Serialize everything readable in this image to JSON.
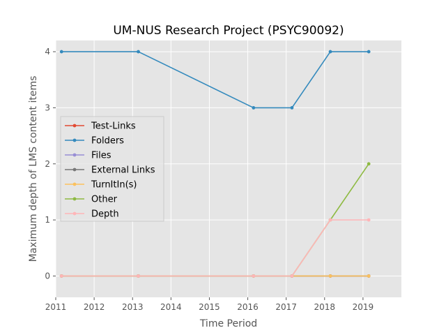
{
  "chart_data": {
    "type": "line",
    "title": "UM-NUS Research Project (PSYC90092)",
    "xlabel": "Time Period",
    "ylabel": "Maximum depth of LMS content items",
    "xlim": [
      2011.0,
      2020.0
    ],
    "ylim": [
      -0.38,
      4.2
    ],
    "x_ticks": [
      2011,
      2012,
      2013,
      2014,
      2015,
      2016,
      2017,
      2018,
      2019
    ],
    "y_ticks": [
      0,
      1,
      2,
      3,
      4
    ],
    "x": [
      2011.15,
      2013.15,
      2016.15,
      2017.15,
      2018.15,
      2019.15
    ],
    "grid": true,
    "legend_position": "center-left",
    "background": "#e5e5e5",
    "series": [
      {
        "name": "Test-Links",
        "color": "#e24a33",
        "values": [
          0,
          0,
          0,
          0,
          0,
          0
        ]
      },
      {
        "name": "Folders",
        "color": "#348abd",
        "values": [
          4,
          4,
          3,
          3,
          4,
          4
        ]
      },
      {
        "name": "Files",
        "color": "#988ed5",
        "values": [
          0,
          0,
          0,
          0,
          0,
          0
        ]
      },
      {
        "name": "External Links",
        "color": "#777777",
        "values": [
          0,
          0,
          0,
          0,
          0,
          0
        ]
      },
      {
        "name": "TurnItIn(s)",
        "color": "#fbc15e",
        "values": [
          0,
          0,
          0,
          0,
          0,
          0
        ]
      },
      {
        "name": "Other",
        "color": "#8eba42",
        "values": [
          0,
          0,
          0,
          0,
          1,
          2
        ]
      },
      {
        "name": "Depth",
        "color": "#ffb5b8",
        "values": [
          0,
          0,
          0,
          0,
          1,
          1
        ]
      }
    ]
  }
}
